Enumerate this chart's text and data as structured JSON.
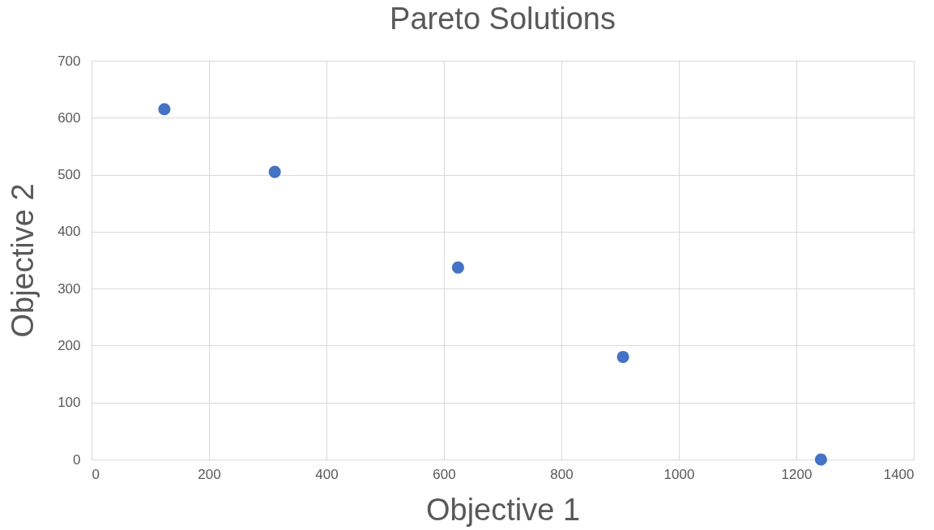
{
  "chart_data": {
    "type": "scatter",
    "title": "Pareto Solutions",
    "xlabel": "Objective 1",
    "ylabel": "Objective 2",
    "x": [
      124,
      312,
      624,
      905,
      1242
    ],
    "series": [
      {
        "color": "#4472c4",
        "values": [
          615,
          505,
          337,
          180,
          0
        ]
      }
    ],
    "xlim": [
      0,
      1400
    ],
    "xticks": [
      0,
      200,
      400,
      600,
      800,
      1000,
      1200,
      1400
    ],
    "ylim": [
      0,
      700
    ],
    "yticks": [
      0,
      100,
      200,
      300,
      400,
      500,
      600,
      700
    ],
    "grid": true,
    "marker": "circle"
  }
}
